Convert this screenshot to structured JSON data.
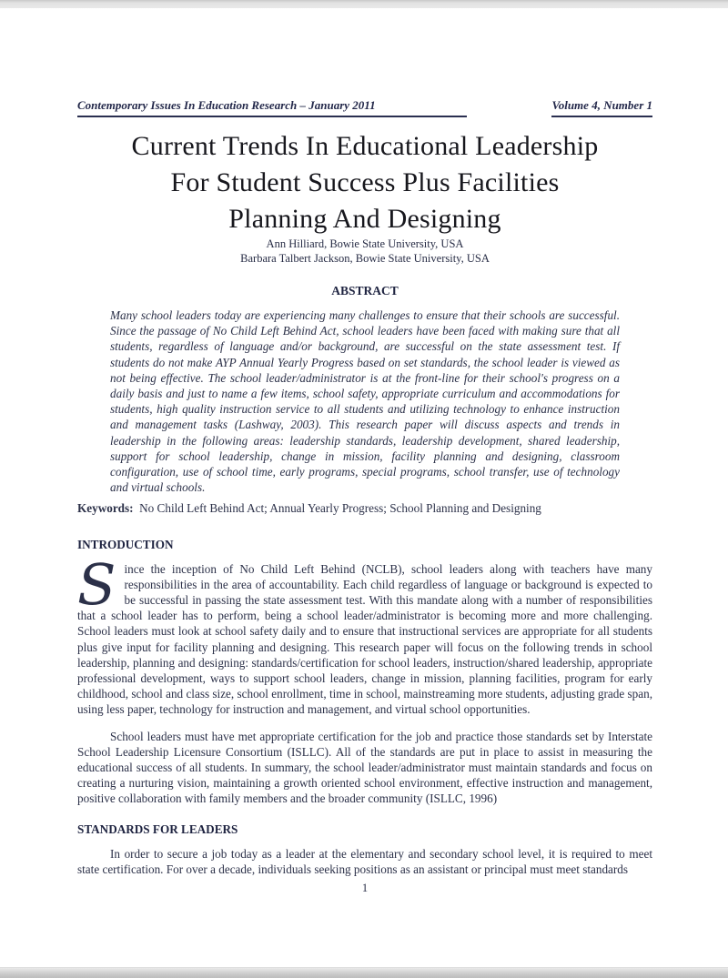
{
  "runhead": {
    "journal": "Contemporary Issues In Education Research – January 2011",
    "volume": "Volume 4, Number 1"
  },
  "title": {
    "line1": "Current Trends In Educational Leadership",
    "line2": "For Student Success Plus Facilities",
    "line3": "Planning And Designing"
  },
  "authors": [
    "Ann Hilliard, Bowie State University, USA",
    "Barbara Talbert Jackson, Bowie State University, USA"
  ],
  "abstract": {
    "heading": "ABSTRACT",
    "body": "Many school leaders today are experiencing many challenges to ensure that their schools are successful.  Since the passage of No Child Left Behind Act, school leaders have been faced with making sure that all students, regardless of language and/or background, are successful on the state assessment test.  If students do not make AYP Annual Yearly Progress based on set standards, the school leader is viewed as not being effective.  The school leader/administrator is at the front-line for their school's progress on a daily basis and just to name a few items, school safety, appropriate curriculum and accommodations for students, high quality instruction service to all students and utilizing technology to enhance instruction and management tasks (Lashway, 2003).  This research paper will discuss aspects and trends in leadership in the following areas: leadership standards, leadership development, shared leadership, support for school leadership, change in mission, facility planning and designing, classroom configuration, use of school time, early programs, special programs, school transfer, use of technology and virtual schools."
  },
  "keywords": {
    "label": "Keywords:",
    "value": "No Child Left Behind Act; Annual Yearly Progress; School Planning and Designing"
  },
  "introduction": {
    "heading": "INTRODUCTION",
    "dropcap": "S",
    "paragraph1": "ince the inception of No Child Left Behind (NCLB), school leaders along with teachers have many responsibilities in the area of accountability.  Each child regardless of language or background is expected to be successful in passing the state assessment test.  With this mandate along with a number of responsibilities that a school leader has to perform, being a school leader/administrator is becoming more and more challenging.  School leaders must look at school safety daily and to ensure that instructional services are appropriate for all students plus give input for facility planning and designing. This research paper will focus on the following trends in school leadership, planning and designing:  standards/certification for school leaders, instruction/shared leadership, appropriate professional development, ways to support school leaders, change in mission, planning facilities, program for early childhood, school and class size, school enrollment, time in school, mainstreaming more students, adjusting grade span, using less paper, technology for instruction and management, and virtual school opportunities.",
    "paragraph2": "School leaders must have met appropriate certification for the job and practice those standards set by Interstate School Leadership Licensure Consortium (ISLLC).  All of the standards are put in place to assist in measuring the educational success of all students.   In summary, the school leader/administrator must maintain standards and focus on creating a nurturing vision, maintaining a growth oriented school environment, effective instruction and management, positive collaboration with family members and the broader community (ISLLC, 1996)"
  },
  "standards": {
    "heading": "STANDARDS FOR LEADERS",
    "paragraph1": "In order to secure a job today as a leader at the elementary and secondary school level, it is required to meet state certification.  For over a decade, individuals seeking positions as an assistant or principal must meet standards"
  },
  "footer": {
    "page_number": "1"
  }
}
